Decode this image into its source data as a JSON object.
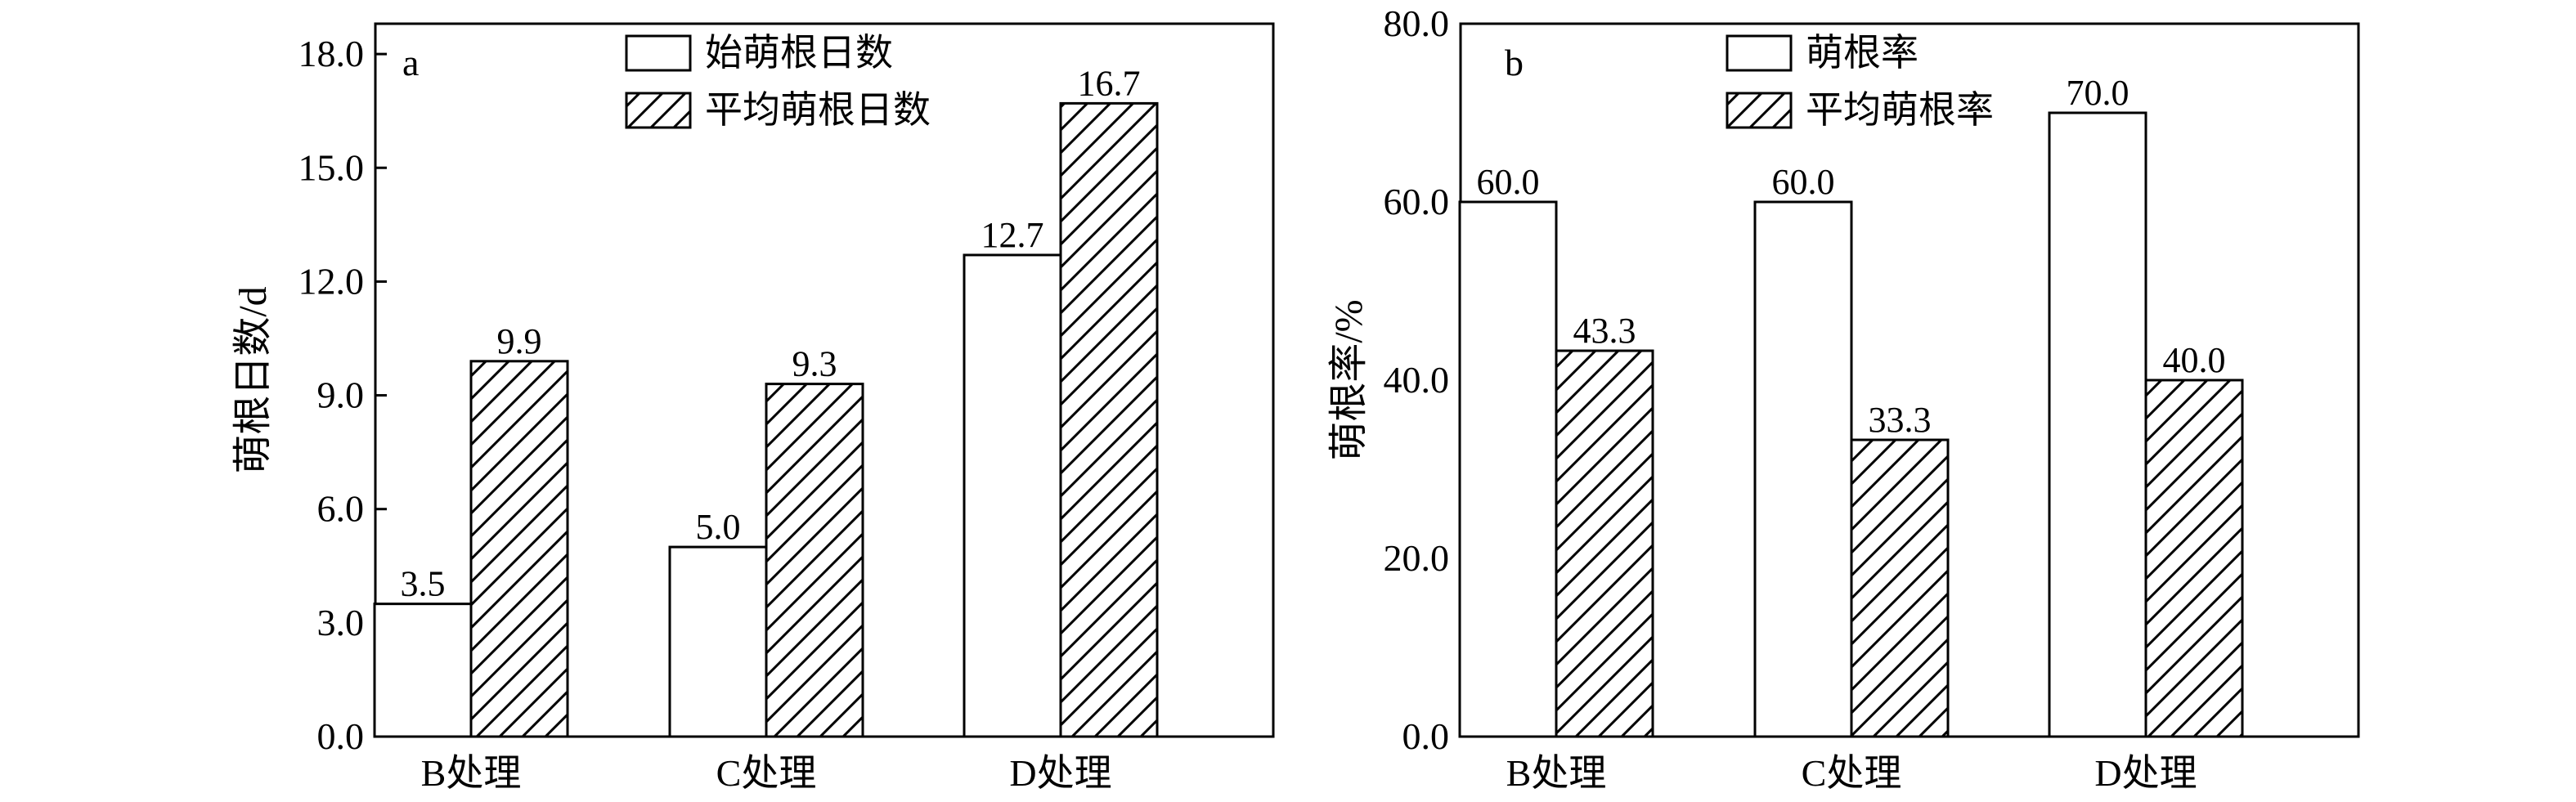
{
  "chart_data": [
    {
      "type": "bar",
      "panel_label": "a",
      "categories": [
        "B处理",
        "C处理",
        "D处理"
      ],
      "series": [
        {
          "name": "始萌根日数",
          "values": [
            3.5,
            5.0,
            12.7
          ],
          "labels": [
            "3.5",
            "5.0",
            "12.7"
          ],
          "fill": "plain"
        },
        {
          "name": "平均萌根日数",
          "values": [
            9.9,
            9.3,
            16.7
          ],
          "labels": [
            "9.9",
            "9.3",
            "16.7"
          ],
          "fill": "hatch"
        }
      ],
      "ylabel": "萌根日数/d",
      "ylim": [
        0,
        18.8
      ],
      "yticks": [
        0,
        3,
        6,
        9,
        12,
        15,
        18
      ],
      "ytick_labels": [
        "0.0",
        "3.0",
        "6.0",
        "9.0",
        "12.0",
        "15.0",
        "18.0"
      ],
      "legend_position": "top-center",
      "grid": false
    },
    {
      "type": "bar",
      "panel_label": "b",
      "categories": [
        "B处理",
        "C处理",
        "D处理"
      ],
      "series": [
        {
          "name": "萌根率",
          "values": [
            60.0,
            60.0,
            70.0
          ],
          "labels": [
            "60.0",
            "60.0",
            "70.0"
          ],
          "fill": "plain"
        },
        {
          "name": "平均萌根率",
          "values": [
            43.3,
            33.3,
            40.0
          ],
          "labels": [
            "43.3",
            "33.3",
            "40.0"
          ],
          "fill": "hatch"
        }
      ],
      "ylabel": "萌根率/%",
      "ylim": [
        0,
        80
      ],
      "yticks": [
        0,
        20,
        40,
        60,
        80
      ],
      "ytick_labels": [
        "0.0",
        "20.0",
        "40.0",
        "60.0",
        "80.0"
      ],
      "legend_position": "top-center",
      "grid": false
    }
  ],
  "colors": {
    "bar_fill": "#ffffff",
    "stroke": "#000000",
    "hatch": "#000000"
  }
}
